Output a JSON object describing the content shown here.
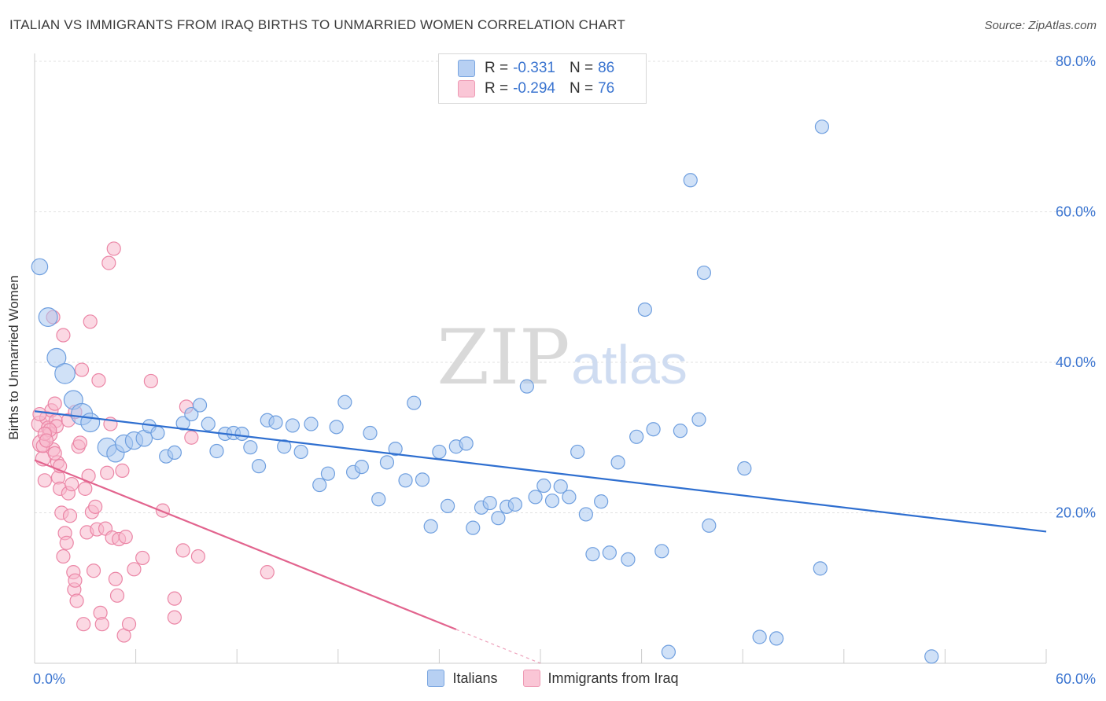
{
  "header": {
    "title": "ITALIAN VS IMMIGRANTS FROM IRAQ BIRTHS TO UNMARRIED WOMEN CORRELATION CHART",
    "source": "Source: ZipAtlas.com"
  },
  "watermark": {
    "zip": "ZIP",
    "atlas": "atlas"
  },
  "legend": {
    "rows": [
      {
        "r_label": "R =",
        "r_value": "-0.331",
        "n_label": "N =",
        "n_value": "86"
      },
      {
        "r_label": "R =",
        "r_value": "-0.294",
        "n_label": "N =",
        "n_value": "76"
      }
    ]
  },
  "chart_data": {
    "type": "scatter",
    "title": "ITALIAN VS IMMIGRANTS FROM IRAQ BIRTHS TO UNMARRIED WOMEN CORRELATION CHART",
    "ylabel": "Births to Unmarried Women",
    "xlabel": "",
    "xlim": [
      0,
      60
    ],
    "ylim": [
      0,
      80
    ],
    "x_tick_labels": [
      "0.0%",
      "60.0%"
    ],
    "y_tick_labels": [
      "20.0%",
      "40.0%",
      "60.0%",
      "80.0%"
    ],
    "y_ticks": [
      20,
      40,
      60,
      80
    ],
    "grid": true,
    "legend_position": "top-center",
    "colors": {
      "italians_fill": "#a9c8f0",
      "italians_stroke": "#6f9fdf",
      "italians_line": "#2f6fd0",
      "iraq_fill": "#f7b8cc",
      "iraq_stroke": "#eb86a6",
      "iraq_line": "#e2648e",
      "axis_text": "#3a74d0",
      "grid": "#e2e2e2"
    },
    "series": [
      {
        "name": "Italians",
        "trend": {
          "x": [
            0,
            60
          ],
          "y": [
            33.5,
            17.5
          ]
        },
        "points": [
          [
            0.3,
            52.7,
            1.2
          ],
          [
            0.8,
            46.0,
            1.4
          ],
          [
            1.3,
            40.6,
            1.4
          ],
          [
            1.8,
            38.5,
            1.5
          ],
          [
            2.3,
            35.0,
            1.4
          ],
          [
            2.8,
            33.1,
            1.6
          ],
          [
            3.3,
            32.0,
            1.4
          ],
          [
            4.3,
            28.7,
            1.4
          ],
          [
            4.8,
            27.9,
            1.3
          ],
          [
            5.3,
            29.2,
            1.3
          ],
          [
            5.9,
            29.6,
            1.3
          ],
          [
            6.5,
            29.9,
            1.2
          ],
          [
            6.8,
            31.5,
            1.0
          ],
          [
            7.3,
            30.6,
            1.0
          ],
          [
            7.8,
            27.5,
            1.0
          ],
          [
            8.3,
            28.0,
            1.0
          ],
          [
            8.8,
            31.9,
            1.0
          ],
          [
            9.3,
            33.1,
            1.0
          ],
          [
            9.8,
            34.3,
            1.0
          ],
          [
            10.3,
            31.8,
            1.0
          ],
          [
            10.8,
            28.2,
            1.0
          ],
          [
            11.3,
            30.5,
            1.0
          ],
          [
            11.8,
            30.6,
            1.0
          ],
          [
            12.3,
            30.5,
            1.0
          ],
          [
            12.8,
            28.7,
            1.0
          ],
          [
            13.3,
            26.2,
            1.0
          ],
          [
            13.8,
            32.3,
            1.0
          ],
          [
            14.3,
            32.0,
            1.0
          ],
          [
            14.8,
            28.8,
            1.0
          ],
          [
            15.3,
            31.6,
            1.0
          ],
          [
            15.8,
            28.1,
            1.0
          ],
          [
            16.4,
            31.8,
            1.0
          ],
          [
            16.9,
            23.7,
            1.0
          ],
          [
            17.4,
            25.2,
            1.0
          ],
          [
            17.9,
            31.4,
            1.0
          ],
          [
            18.4,
            34.7,
            1.0
          ],
          [
            18.9,
            25.4,
            1.0
          ],
          [
            19.4,
            26.1,
            1.0
          ],
          [
            19.9,
            30.6,
            1.0
          ],
          [
            20.4,
            21.8,
            1.0
          ],
          [
            20.9,
            26.7,
            1.0
          ],
          [
            21.4,
            28.5,
            1.0
          ],
          [
            22.0,
            24.3,
            1.0
          ],
          [
            22.5,
            34.6,
            1.0
          ],
          [
            23.0,
            24.4,
            1.0
          ],
          [
            23.5,
            18.2,
            1.0
          ],
          [
            24.0,
            28.1,
            1.0
          ],
          [
            24.5,
            20.9,
            1.0
          ],
          [
            25.0,
            28.8,
            1.0
          ],
          [
            25.6,
            29.2,
            1.0
          ],
          [
            26.0,
            18.0,
            1.0
          ],
          [
            26.5,
            20.7,
            1.0
          ],
          [
            27.0,
            21.3,
            1.0
          ],
          [
            27.5,
            19.3,
            1.0
          ],
          [
            28.0,
            20.8,
            1.0
          ],
          [
            28.5,
            21.1,
            1.0
          ],
          [
            29.2,
            36.8,
            1.0
          ],
          [
            29.7,
            22.1,
            1.0
          ],
          [
            30.2,
            23.6,
            1.0
          ],
          [
            30.7,
            21.6,
            1.0
          ],
          [
            31.2,
            23.5,
            1.0
          ],
          [
            31.7,
            22.1,
            1.0
          ],
          [
            32.2,
            28.1,
            1.0
          ],
          [
            32.7,
            19.8,
            1.0
          ],
          [
            33.1,
            14.5,
            1.0
          ],
          [
            33.6,
            21.5,
            1.0
          ],
          [
            34.1,
            14.7,
            1.0
          ],
          [
            34.6,
            26.7,
            1.0
          ],
          [
            35.2,
            13.8,
            1.0
          ],
          [
            35.7,
            30.1,
            1.0
          ],
          [
            36.2,
            47.0,
            1.0
          ],
          [
            36.7,
            31.1,
            1.0
          ],
          [
            37.2,
            14.9,
            1.0
          ],
          [
            37.6,
            1.5,
            1.0
          ],
          [
            38.3,
            30.9,
            1.0
          ],
          [
            38.9,
            64.2,
            1.0
          ],
          [
            39.4,
            32.4,
            1.0
          ],
          [
            40.0,
            18.3,
            1.0
          ],
          [
            39.7,
            51.9,
            1.0
          ],
          [
            42.1,
            25.9,
            1.0
          ],
          [
            43.0,
            3.5,
            1.0
          ],
          [
            44.0,
            3.3,
            1.0
          ],
          [
            46.7,
            71.3,
            1.0
          ],
          [
            46.6,
            12.6,
            1.0
          ],
          [
            53.2,
            0.9,
            1.0
          ],
          [
            28.4,
            35.0,
            0.0
          ]
        ]
      },
      {
        "name": "Immigrants from Iraq",
        "trend": {
          "x": [
            0,
            25
          ],
          "y": [
            27.0,
            4.5
          ]
        },
        "trend_dashed": {
          "x": [
            25,
            30
          ],
          "y": [
            4.5,
            0.0
          ]
        },
        "points": [
          [
            0.3,
            31.8,
            1.2
          ],
          [
            0.4,
            29.2,
            1.3
          ],
          [
            0.5,
            27.2,
            1.1
          ],
          [
            0.6,
            24.3,
            1.0
          ],
          [
            0.7,
            32.6,
            1.0
          ],
          [
            0.8,
            31.3,
            1.0
          ],
          [
            0.9,
            30.4,
            1.1
          ],
          [
            1.0,
            33.6,
            1.0
          ],
          [
            1.1,
            28.4,
            1.0
          ],
          [
            1.2,
            34.5,
            1.0
          ],
          [
            1.25,
            32.2,
            1.0
          ],
          [
            1.3,
            31.5,
            1.0
          ],
          [
            1.35,
            26.7,
            1.0
          ],
          [
            1.4,
            24.7,
            1.0
          ],
          [
            1.5,
            23.2,
            1.0
          ],
          [
            1.6,
            20.0,
            1.0
          ],
          [
            1.7,
            14.2,
            1.0
          ],
          [
            1.8,
            17.3,
            1.0
          ],
          [
            1.9,
            16.0,
            1.0
          ],
          [
            2.0,
            22.6,
            1.0
          ],
          [
            2.1,
            19.6,
            1.0
          ],
          [
            2.2,
            23.8,
            1.0
          ],
          [
            2.3,
            12.1,
            1.0
          ],
          [
            2.35,
            9.8,
            1.0
          ],
          [
            2.4,
            11.0,
            1.0
          ],
          [
            2.5,
            8.3,
            1.0
          ],
          [
            2.6,
            28.8,
            1.0
          ],
          [
            2.7,
            29.3,
            1.0
          ],
          [
            2.8,
            39.0,
            1.0
          ],
          [
            2.9,
            5.2,
            1.0
          ],
          [
            3.0,
            23.2,
            1.0
          ],
          [
            3.1,
            17.4,
            1.0
          ],
          [
            3.2,
            24.9,
            1.0
          ],
          [
            3.3,
            45.4,
            1.0
          ],
          [
            3.4,
            20.1,
            1.0
          ],
          [
            3.5,
            12.3,
            1.0
          ],
          [
            3.6,
            20.8,
            1.0
          ],
          [
            3.7,
            17.8,
            1.0
          ],
          [
            3.8,
            37.6,
            1.0
          ],
          [
            3.9,
            6.7,
            1.0
          ],
          [
            4.0,
            5.2,
            1.0
          ],
          [
            4.2,
            17.9,
            1.0
          ],
          [
            4.3,
            25.3,
            1.0
          ],
          [
            4.4,
            53.2,
            1.0
          ],
          [
            4.5,
            31.8,
            1.0
          ],
          [
            4.6,
            16.7,
            1.0
          ],
          [
            4.7,
            55.1,
            1.0
          ],
          [
            4.8,
            11.2,
            1.0
          ],
          [
            4.9,
            9.0,
            1.0
          ],
          [
            5.0,
            16.5,
            1.0
          ],
          [
            5.2,
            25.6,
            1.0
          ],
          [
            5.3,
            3.7,
            1.0
          ],
          [
            5.4,
            16.8,
            1.0
          ],
          [
            5.6,
            5.2,
            1.0
          ],
          [
            5.9,
            12.5,
            1.0
          ],
          [
            6.4,
            14.0,
            1.0
          ],
          [
            6.9,
            37.5,
            1.0
          ],
          [
            7.6,
            20.3,
            1.0
          ],
          [
            8.3,
            8.6,
            1.0
          ],
          [
            8.3,
            6.1,
            1.0
          ],
          [
            8.8,
            15.0,
            1.0
          ],
          [
            9.0,
            34.1,
            1.0
          ],
          [
            9.3,
            30.0,
            1.0
          ],
          [
            9.7,
            14.2,
            1.0
          ],
          [
            13.8,
            12.1,
            1.0
          ],
          [
            0.5,
            28.9,
            1.0
          ],
          [
            1.1,
            46.0,
            1.0
          ],
          [
            1.7,
            43.6,
            1.0
          ],
          [
            0.9,
            31.0,
            1.0
          ],
          [
            2.0,
            32.3,
            1.0
          ],
          [
            2.4,
            33.4,
            1.0
          ],
          [
            0.6,
            30.5,
            1.0
          ],
          [
            1.5,
            26.2,
            1.0
          ],
          [
            1.2,
            27.9,
            1.0
          ],
          [
            0.3,
            33.1,
            1.0
          ],
          [
            0.7,
            29.6,
            1.0
          ]
        ]
      }
    ]
  }
}
